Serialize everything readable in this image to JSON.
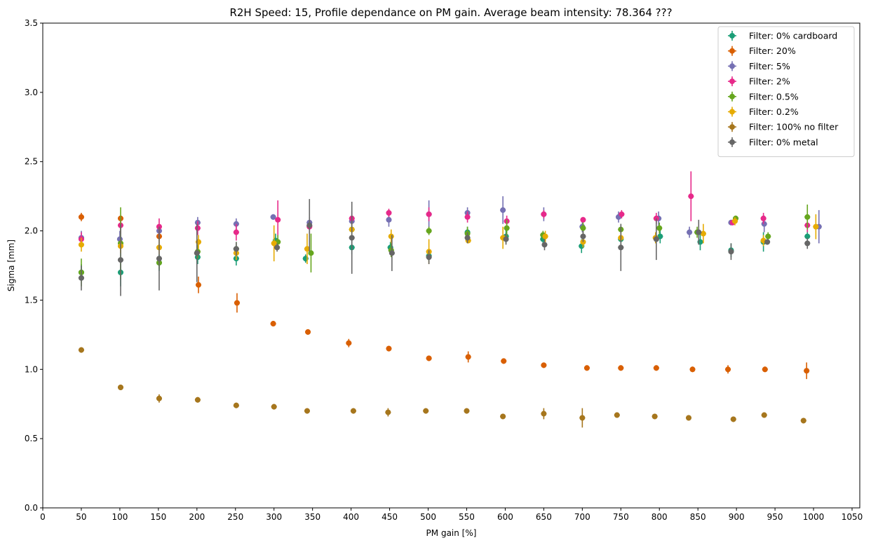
{
  "chart_data": {
    "type": "scatter",
    "title": "R2H Speed: 15, Profile dependance on PM gain. Average beam intensity: 78.364 ???",
    "xlabel": "PM gain [%]",
    "ylabel": "Sigma [mm]",
    "xlim": [
      0,
      1060
    ],
    "ylim": [
      0,
      3.5
    ],
    "xticks": [
      0,
      50,
      100,
      150,
      200,
      250,
      300,
      350,
      400,
      450,
      500,
      550,
      600,
      650,
      700,
      750,
      800,
      850,
      900,
      950,
      1000,
      1050
    ],
    "yticks": [
      0.0,
      0.5,
      1.0,
      1.5,
      2.0,
      2.5,
      3.0,
      3.5
    ],
    "ytick_labels": [
      "0.0",
      "0.5",
      "1.0",
      "1.5",
      "2.0",
      "2.5",
      "3.0",
      "3.5"
    ],
    "grid": false,
    "legend_position": "top-right",
    "series": [
      {
        "name": "Filter: 0% cardboard",
        "color": "#1b9e77",
        "points": [
          [
            50,
            1.7,
            0.06
          ],
          [
            101,
            1.7,
            0.1
          ],
          [
            151,
            1.77,
            0.06
          ],
          [
            201,
            1.81,
            0.05
          ],
          [
            251,
            1.8,
            0.05
          ],
          [
            302,
            1.93,
            0.05
          ],
          [
            341,
            1.8,
            0.03
          ],
          [
            401,
            1.88,
            0.05
          ],
          [
            451,
            1.88,
            0.04
          ],
          [
            501,
            1.82,
            0.04
          ],
          [
            551,
            1.99,
            0.04
          ],
          [
            601,
            1.96,
            0.05
          ],
          [
            649,
            1.94,
            0.05
          ],
          [
            699,
            1.89,
            0.05
          ],
          [
            750,
            1.94,
            0.04
          ],
          [
            801,
            1.96,
            0.05
          ],
          [
            853,
            1.92,
            0.06
          ],
          [
            893,
            1.86,
            0.05
          ],
          [
            935,
            1.92,
            0.07
          ],
          [
            992,
            1.96,
            0.06
          ]
        ]
      },
      {
        "name": "Filter: 20%",
        "color": "#d95f02",
        "points": [
          [
            50,
            2.1,
            0.03
          ],
          [
            101,
            2.09,
            0.02
          ],
          [
            151,
            1.96,
            0.03
          ],
          [
            202,
            1.61,
            0.06
          ],
          [
            252,
            1.48,
            0.07
          ],
          [
            299,
            1.33,
            0.02
          ],
          [
            344,
            1.27,
            0.02
          ],
          [
            397,
            1.19,
            0.03
          ],
          [
            449,
            1.15,
            0.02
          ],
          [
            501,
            1.08,
            0.02
          ],
          [
            552,
            1.09,
            0.04
          ],
          [
            598,
            1.06,
            0.02
          ],
          [
            650,
            1.03,
            0.02
          ],
          [
            706,
            1.01,
            0.02
          ],
          [
            750,
            1.01,
            0.02
          ],
          [
            796,
            1.01,
            0.02
          ],
          [
            843,
            1.0,
            0.02
          ],
          [
            889,
            1.0,
            0.03
          ],
          [
            937,
            1.0,
            0.02
          ],
          [
            991,
            0.99,
            0.06
          ]
        ]
      },
      {
        "name": "Filter: 5%",
        "color": "#7570b3",
        "points": [
          [
            50,
            1.95,
            0.05
          ],
          [
            100,
            1.94,
            0.06
          ],
          [
            151,
            2.0,
            0.04
          ],
          [
            201,
            2.06,
            0.04
          ],
          [
            251,
            2.05,
            0.04
          ],
          [
            299,
            2.1,
            0.02
          ],
          [
            346,
            2.06,
            0.04
          ],
          [
            401,
            2.07,
            0.05
          ],
          [
            449,
            2.08,
            0.05
          ],
          [
            501,
            2.12,
            0.1
          ],
          [
            551,
            2.13,
            0.04
          ],
          [
            597,
            2.15,
            0.1
          ],
          [
            650,
            2.12,
            0.05
          ],
          [
            700,
            2.03,
            0.04
          ],
          [
            747,
            2.1,
            0.04
          ],
          [
            799,
            2.09,
            0.05
          ],
          [
            839,
            1.99,
            0.04
          ],
          [
            893,
            2.06,
            0.02
          ],
          [
            936,
            2.05,
            0.06
          ],
          [
            1007,
            2.03,
            0.12
          ]
        ]
      },
      {
        "name": "Filter: 2%",
        "color": "#e7298a",
        "points": [
          [
            50,
            1.94,
            0.05
          ],
          [
            101,
            2.04,
            0.06
          ],
          [
            151,
            2.03,
            0.06
          ],
          [
            201,
            2.02,
            0.05
          ],
          [
            251,
            1.99,
            0.06
          ],
          [
            305,
            2.08,
            0.14
          ],
          [
            346,
            2.03,
            0.05
          ],
          [
            401,
            2.09,
            0.05
          ],
          [
            449,
            2.13,
            0.03
          ],
          [
            501,
            2.12,
            0.05
          ],
          [
            551,
            2.1,
            0.04
          ],
          [
            602,
            2.07,
            0.04
          ],
          [
            650,
            2.12,
            0.03
          ],
          [
            701,
            2.08,
            0.02
          ],
          [
            751,
            2.12,
            0.03
          ],
          [
            796,
            2.09,
            0.04
          ],
          [
            841,
            2.25,
            0.18
          ],
          [
            895,
            2.06,
            0.02
          ],
          [
            935,
            2.09,
            0.04
          ],
          [
            992,
            2.04,
            0.05
          ]
        ]
      },
      {
        "name": "Filter: 0.5%",
        "color": "#66a61e",
        "points": [
          [
            50,
            1.7,
            0.1
          ],
          [
            101,
            1.91,
            0.26
          ],
          [
            151,
            1.77,
            0.05
          ],
          [
            201,
            1.85,
            0.05
          ],
          [
            251,
            1.87,
            0.05
          ],
          [
            305,
            1.92,
            0.05
          ],
          [
            348,
            1.84,
            0.14
          ],
          [
            401,
            2.01,
            0.05
          ],
          [
            452,
            1.86,
            0.05
          ],
          [
            501,
            2.0,
            0.03
          ],
          [
            551,
            1.98,
            0.05
          ],
          [
            602,
            2.02,
            0.06
          ],
          [
            649,
            1.97,
            0.03
          ],
          [
            701,
            2.02,
            0.04
          ],
          [
            750,
            2.01,
            0.04
          ],
          [
            800,
            2.02,
            0.04
          ],
          [
            849,
            1.99,
            0.04
          ],
          [
            899,
            2.09,
            0.02
          ],
          [
            941,
            1.96,
            0.03
          ],
          [
            992,
            2.1,
            0.09
          ]
        ]
      },
      {
        "name": "Filter: 0.2%",
        "color": "#e6ab02",
        "points": [
          [
            50,
            1.9,
            0.05
          ],
          [
            101,
            1.89,
            0.05
          ],
          [
            151,
            1.88,
            0.05
          ],
          [
            202,
            1.92,
            0.05
          ],
          [
            251,
            1.84,
            0.05
          ],
          [
            300,
            1.91,
            0.13
          ],
          [
            343,
            1.87,
            0.11
          ],
          [
            401,
            2.01,
            0.06
          ],
          [
            452,
            1.96,
            0.05
          ],
          [
            501,
            1.85,
            0.09
          ],
          [
            552,
            1.93,
            0.02
          ],
          [
            597,
            1.95,
            0.08
          ],
          [
            652,
            1.96,
            0.04
          ],
          [
            701,
            1.92,
            0.04
          ],
          [
            750,
            1.95,
            0.04
          ],
          [
            795,
            1.95,
            0.04
          ],
          [
            857,
            1.98,
            0.07
          ],
          [
            898,
            2.07,
            0.03
          ],
          [
            935,
            1.93,
            0.04
          ],
          [
            1003,
            2.03,
            0.09
          ]
        ]
      },
      {
        "name": "Filter: 100% no filter",
        "color": "#a6761d",
        "points": [
          [
            50,
            1.14,
            0.02
          ],
          [
            101,
            0.87,
            0.02
          ],
          [
            151,
            0.79,
            0.03
          ],
          [
            201,
            0.78,
            0.02
          ],
          [
            251,
            0.74,
            0.02
          ],
          [
            300,
            0.73,
            0.02
          ],
          [
            343,
            0.7,
            0.02
          ],
          [
            403,
            0.7,
            0.02
          ],
          [
            448,
            0.69,
            0.03
          ],
          [
            497,
            0.7,
            0.02
          ],
          [
            550,
            0.7,
            0.02
          ],
          [
            597,
            0.66,
            0.02
          ],
          [
            650,
            0.68,
            0.04
          ],
          [
            700,
            0.65,
            0.07
          ],
          [
            745,
            0.67,
            0.02
          ],
          [
            794,
            0.66,
            0.02
          ],
          [
            838,
            0.65,
            0.02
          ],
          [
            896,
            0.64,
            0.02
          ],
          [
            936,
            0.67,
            0.02
          ],
          [
            987,
            0.63,
            0.02
          ]
        ]
      },
      {
        "name": "Filter: 0% metal",
        "color": "#666666",
        "points": [
          [
            50,
            1.66,
            0.09
          ],
          [
            101,
            1.79,
            0.26
          ],
          [
            151,
            1.8,
            0.23
          ],
          [
            200,
            1.84,
            0.21
          ],
          [
            251,
            1.87,
            0.05
          ],
          [
            304,
            1.88,
            0.03
          ],
          [
            346,
            2.04,
            0.19
          ],
          [
            401,
            1.95,
            0.26
          ],
          [
            453,
            1.84,
            0.13
          ],
          [
            501,
            1.81,
            0.05
          ],
          [
            551,
            1.95,
            0.04
          ],
          [
            601,
            1.94,
            0.04
          ],
          [
            651,
            1.9,
            0.04
          ],
          [
            701,
            1.96,
            0.04
          ],
          [
            750,
            1.88,
            0.17
          ],
          [
            796,
            1.94,
            0.15
          ],
          [
            851,
            1.99,
            0.09
          ],
          [
            893,
            1.85,
            0.06
          ],
          [
            940,
            1.92,
            0.02
          ],
          [
            992,
            1.91,
            0.04
          ]
        ]
      }
    ]
  }
}
